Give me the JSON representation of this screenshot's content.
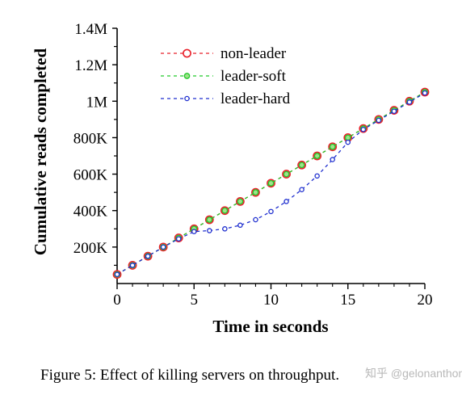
{
  "caption": "Figure 5: Effect of killing servers on throughput.",
  "watermark": "知乎 @gelonanthony",
  "chart_data": {
    "type": "line",
    "title": "",
    "xlabel": "Time in seconds",
    "ylabel": "Cumulative reads completed",
    "xlim": [
      0,
      20
    ],
    "ylim": [
      0,
      1400000
    ],
    "x_ticks": [
      0,
      5,
      10,
      15,
      20
    ],
    "x_tick_labels": [
      "0",
      "5",
      "10",
      "15",
      "20"
    ],
    "y_ticks": [
      200000,
      400000,
      600000,
      800000,
      1000000,
      1200000,
      1400000
    ],
    "y_tick_labels": [
      "200K",
      "400K",
      "600K",
      "800K",
      "1M",
      "1.2M",
      "1.4M"
    ],
    "grid": false,
    "legend_position": "top-left",
    "x": [
      0,
      1,
      2,
      3,
      4,
      5,
      6,
      7,
      8,
      9,
      10,
      11,
      12,
      13,
      14,
      15,
      16,
      17,
      18,
      19,
      20
    ],
    "series": [
      {
        "name": "non-leader",
        "color": "#e8202a",
        "marker": "circle-large",
        "values": [
          50000,
          100000,
          150000,
          200000,
          250000,
          300000,
          350000,
          400000,
          450000,
          500000,
          550000,
          600000,
          650000,
          700000,
          750000,
          800000,
          850000,
          900000,
          950000,
          1000000,
          1050000
        ]
      },
      {
        "name": "leader-soft",
        "color": "#22c92a",
        "marker": "circle-filled",
        "values": [
          50000,
          100000,
          150000,
          200000,
          250000,
          300000,
          350000,
          400000,
          450000,
          500000,
          550000,
          600000,
          650000,
          700000,
          750000,
          800000,
          850000,
          900000,
          950000,
          1000000,
          1050000
        ]
      },
      {
        "name": "leader-hard",
        "color": "#1f2fcf",
        "marker": "circle-small",
        "values": [
          50000,
          100000,
          150000,
          200000,
          245000,
          285000,
          290000,
          300000,
          320000,
          350000,
          395000,
          450000,
          515000,
          590000,
          680000,
          775000,
          845000,
          895000,
          945000,
          995000,
          1045000
        ]
      }
    ]
  }
}
